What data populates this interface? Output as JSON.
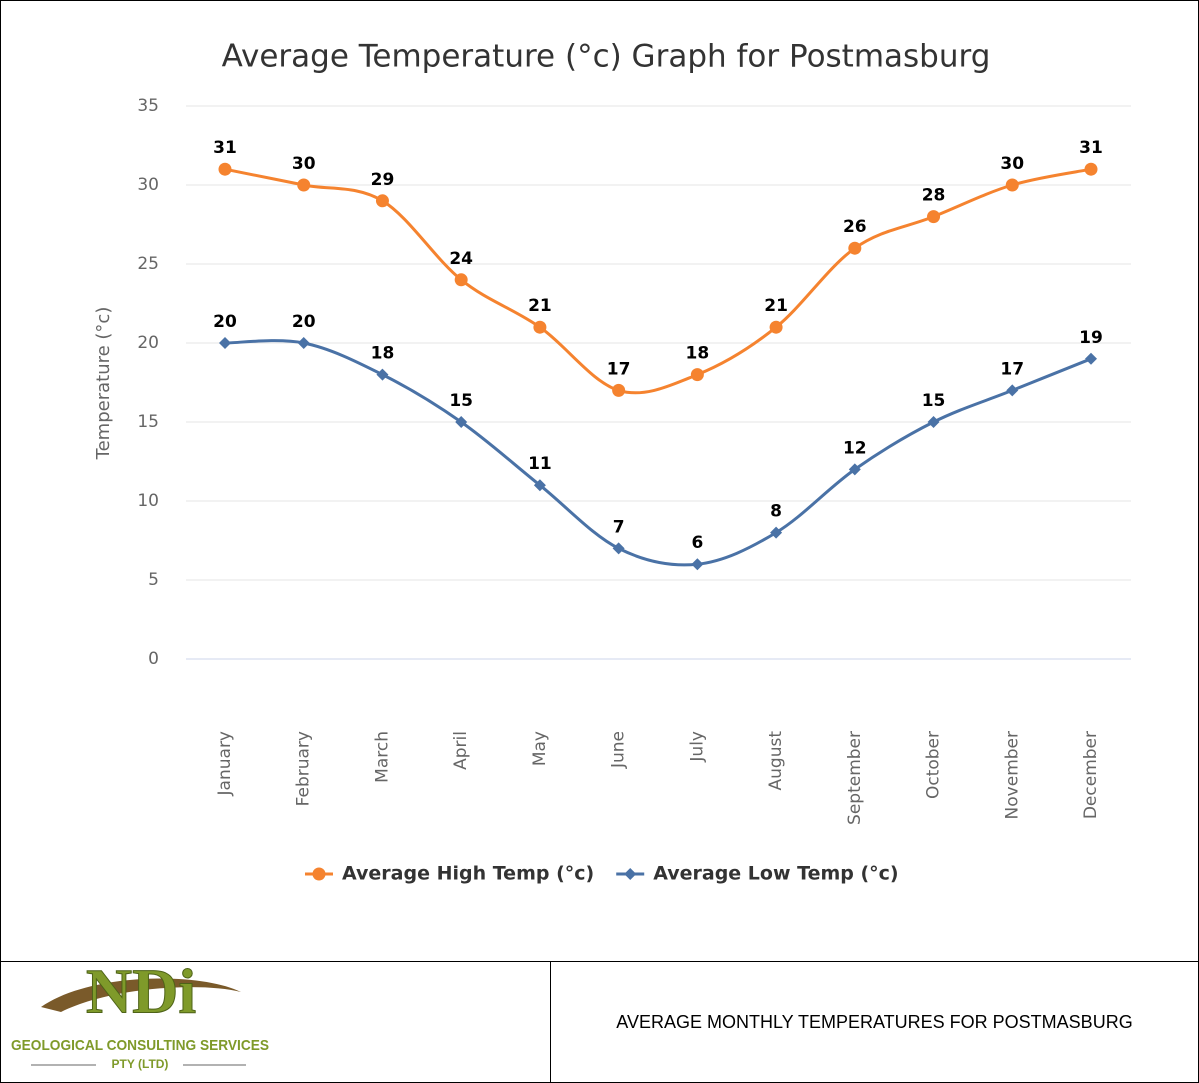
{
  "chart_data": {
    "type": "line",
    "title": "Average Temperature (°c) Graph for Postmasburg",
    "y_label": "Temperature (°c)",
    "categories": [
      "January",
      "February",
      "March",
      "April",
      "May",
      "June",
      "July",
      "August",
      "September",
      "October",
      "November",
      "December"
    ],
    "series": [
      {
        "name": "Average High Temp (°c)",
        "color": "#f5832f",
        "marker": "circle",
        "values": [
          31,
          30,
          29,
          24,
          21,
          17,
          18,
          21,
          26,
          28,
          30,
          31
        ]
      },
      {
        "name": "Average Low Temp (°c)",
        "color": "#4a72a6",
        "marker": "diamond",
        "values": [
          20,
          20,
          18,
          15,
          11,
          7,
          6,
          8,
          12,
          15,
          17,
          19
        ]
      }
    ],
    "ylim": [
      0,
      35
    ],
    "yticks": [
      0,
      5,
      10,
      15,
      20,
      25,
      30,
      35
    ],
    "grid": true,
    "legend": "bottom",
    "smooth": true
  },
  "footer": {
    "logo": {
      "initials": "NDi",
      "name": "GEOLOGICAL CONSULTING SERVICES",
      "suffix": "PTY (LTD)"
    },
    "caption": "AVERAGE MONTHLY TEMPERATURES FOR POSTMASBURG"
  }
}
